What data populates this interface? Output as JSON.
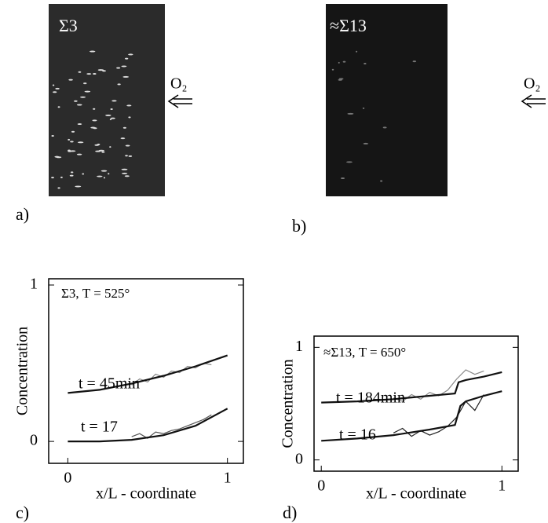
{
  "images": [
    {
      "label": "Σ3",
      "arrow": "O₂",
      "panel": "a)"
    },
    {
      "label": "≈Σ13",
      "arrow": "O₂",
      "panel": "b)"
    }
  ],
  "chart_data": [
    {
      "type": "line",
      "panel": "c)",
      "ylabel": "Concentration",
      "xlabel": "x/L - coordinate",
      "annotations": [
        "Σ3, T = 525°",
        "t = 45min",
        "t = 17"
      ],
      "xlim": [
        -0.12,
        1.1
      ],
      "ylim": [
        -0.14,
        1.04
      ],
      "xticks": [
        0,
        1
      ],
      "yticks": [
        0,
        1
      ],
      "series": [
        {
          "color": "#888888",
          "x": [
            0.4,
            0.45,
            0.5,
            0.55,
            0.6,
            0.65,
            0.7,
            0.75,
            0.8,
            0.85,
            0.9
          ],
          "values": [
            0.36,
            0.4,
            0.38,
            0.43,
            0.41,
            0.45,
            0.44,
            0.48,
            0.47,
            0.5,
            0.49
          ]
        },
        {
          "color": "#111111",
          "x": [
            0,
            0.2,
            0.4,
            0.6,
            0.8,
            1
          ],
          "values": [
            0.31,
            0.33,
            0.37,
            0.42,
            0.48,
            0.55
          ]
        },
        {
          "color": "#555555",
          "x": [
            0.4,
            0.45,
            0.5,
            0.55,
            0.6,
            0.65,
            0.7,
            0.75,
            0.8,
            0.85,
            0.9
          ],
          "values": [
            0.03,
            0.05,
            0.02,
            0.06,
            0.05,
            0.07,
            0.08,
            0.1,
            0.12,
            0.14,
            0.17
          ]
        },
        {
          "color": "#111111",
          "x": [
            0,
            0.2,
            0.4,
            0.6,
            0.8,
            1
          ],
          "values": [
            0,
            0,
            0.01,
            0.04,
            0.1,
            0.21
          ]
        }
      ]
    },
    {
      "type": "line",
      "panel": "d)",
      "ylabel": "Concentration",
      "xlabel": "x/L - coordinate",
      "annotations": [
        "≈Σ13, T = 650°",
        "t = 184min",
        "t = 16"
      ],
      "xlim": [
        -0.04,
        1.09
      ],
      "ylim": [
        -0.1,
        1.1
      ],
      "xticks": [
        0,
        1
      ],
      "yticks": [
        0,
        1
      ],
      "series": [
        {
          "color": "#888888",
          "x": [
            0.4,
            0.45,
            0.5,
            0.55,
            0.6,
            0.65,
            0.7,
            0.75,
            0.8,
            0.85,
            0.9
          ],
          "values": [
            0.55,
            0.52,
            0.58,
            0.54,
            0.6,
            0.57,
            0.62,
            0.72,
            0.8,
            0.76,
            0.79
          ]
        },
        {
          "color": "#111111",
          "x": [
            0,
            0.2,
            0.4,
            0.6,
            0.74,
            0.76,
            0.8,
            0.9,
            1
          ],
          "values": [
            0.51,
            0.52,
            0.54,
            0.57,
            0.59,
            0.69,
            0.71,
            0.74,
            0.78
          ]
        },
        {
          "color": "#222222",
          "x": [
            0.4,
            0.45,
            0.5,
            0.55,
            0.6,
            0.65,
            0.7,
            0.75,
            0.8,
            0.85,
            0.9
          ],
          "values": [
            0.24,
            0.28,
            0.21,
            0.26,
            0.22,
            0.25,
            0.3,
            0.38,
            0.52,
            0.44,
            0.58
          ]
        },
        {
          "color": "#111111",
          "x": [
            0,
            0.2,
            0.4,
            0.6,
            0.74,
            0.77,
            0.8,
            0.9,
            1
          ],
          "values": [
            0.17,
            0.19,
            0.22,
            0.27,
            0.31,
            0.48,
            0.52,
            0.57,
            0.61
          ]
        }
      ]
    }
  ]
}
